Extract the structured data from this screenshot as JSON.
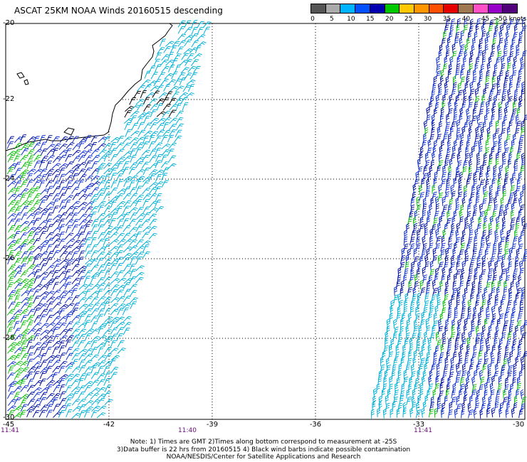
{
  "title": "ASCAT 25KM NOAA Winds 20160515 descending",
  "legend": {
    "unit_label": ">50 knots",
    "colors": [
      "#555555",
      "#aaaaaa",
      "#00b4ff",
      "#0050ff",
      "#0000b0",
      "#00c800",
      "#ffc800",
      "#ff9600",
      "#ff5000",
      "#e60000",
      "#a07850",
      "#ff50c8",
      "#9600c8",
      "#500078"
    ],
    "labels": [
      "0",
      "5",
      "10",
      "15",
      "20",
      "25",
      "30",
      "35",
      "40",
      "45"
    ]
  },
  "map": {
    "latitudes": [
      "-20",
      "-22",
      "-24",
      "-26",
      "-28",
      "-30"
    ],
    "longitudes": [
      "-45",
      "-42",
      "-39",
      "-36",
      "-33",
      "-30"
    ],
    "pass_times": [
      "11:41",
      "11:40",
      "11:41"
    ],
    "barb_colors": {
      "light": "#00b0d8",
      "medium": "#1030d0",
      "dark": "#0010a0",
      "strong": "#10c010",
      "contaminated": "#000000"
    },
    "coast_color": "#000000"
  },
  "notes": {
    "line1": "Note: 1) Times are GMT 2)Times along bottom correspond to measurement at -25S",
    "line2": "3)Data buffer is 22 hrs from 20160515 4) Black wind barbs indicate possible contamination",
    "line3": "NOAA/NESDIS/Center for Satellite Applications and Research"
  }
}
